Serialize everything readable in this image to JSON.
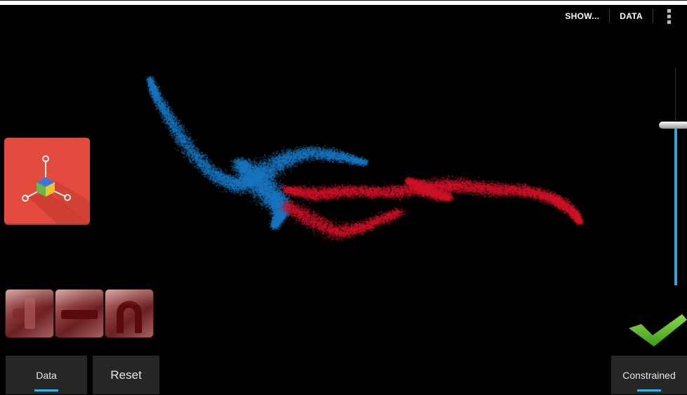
{
  "action_bar": {
    "show_label": "SHOW...",
    "data_label": "DATA",
    "overflow_icon": "overflow-menu-icon"
  },
  "app_icon": {
    "icon": "molecule-cube-icon",
    "background": "#e44b3f"
  },
  "tools": [
    {
      "name": "plus-icon"
    },
    {
      "name": "minus-icon"
    },
    {
      "name": "magnet-icon"
    }
  ],
  "slider": {
    "value_fraction": 0.71,
    "fill_color": "#33a3d8"
  },
  "confirm": {
    "icon": "checkmark-icon",
    "color": "#5cbf2a"
  },
  "bottom_bar": {
    "data_label": "Data",
    "reset_label": "Reset",
    "constrained_label": "Constrained"
  },
  "visualization": {
    "series": [
      {
        "name": "cluster-1",
        "color": "#1a78c2"
      },
      {
        "name": "cluster-2",
        "color": "#d0142a"
      }
    ]
  }
}
